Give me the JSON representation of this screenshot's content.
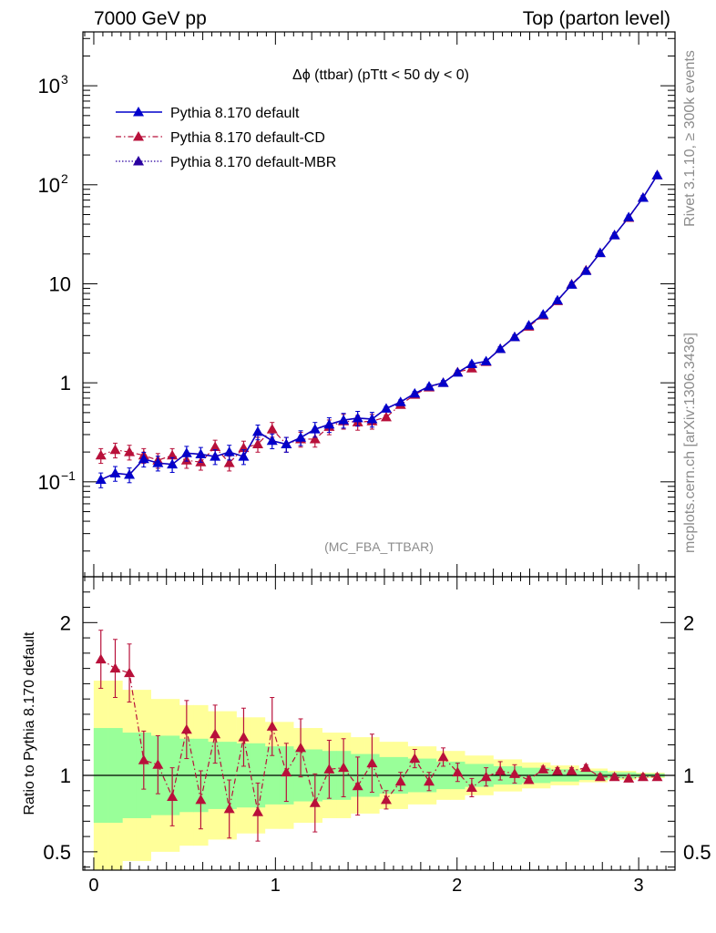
{
  "header": {
    "left": "7000 GeV pp",
    "right": "Top (parton level)"
  },
  "side": {
    "rivet": "Rivet 3.1.10, ≥ 300k events",
    "mcplots": "mcplots.cern.ch [arXiv:1306.3436]"
  },
  "plot_title": "Δϕ (ttbar) (pTtt < 50 dy < 0)",
  "analysis_tag": "(MC_FBA_TTBAR)",
  "ratio_ylabel": "Ratio to Pythia 8.170 default",
  "colors": {
    "default": "#0000cc",
    "cd": "#b8103a",
    "mbr": "#2a00a0",
    "band_inner": "#99ff99",
    "band_outer": "#ffff99"
  },
  "chart_data": [
    {
      "type": "line",
      "title": "Δϕ (ttbar) (pTtt < 50 dy < 0)",
      "xlabel": "",
      "ylabel": "",
      "yscale": "log",
      "xlim": [
        -0.06,
        3.2
      ],
      "ylim": [
        0.011,
        3500
      ],
      "y_ticks": [
        "10^-1",
        "1",
        "10",
        "10^2",
        "10^3"
      ],
      "legend": "top-left",
      "x": [
        0.039,
        0.118,
        0.196,
        0.275,
        0.353,
        0.432,
        0.511,
        0.589,
        0.668,
        0.746,
        0.825,
        0.903,
        0.982,
        1.06,
        1.139,
        1.218,
        1.296,
        1.375,
        1.453,
        1.532,
        1.61,
        1.689,
        1.767,
        1.846,
        1.924,
        2.003,
        2.081,
        2.16,
        2.238,
        2.317,
        2.395,
        2.474,
        2.553,
        2.631,
        2.71,
        2.788,
        2.867,
        2.945,
        3.024,
        3.102
      ],
      "series": [
        {
          "name": "Pythia 8.170 default",
          "style": "solid",
          "values": [
            0.105,
            0.122,
            0.118,
            0.17,
            0.155,
            0.15,
            0.195,
            0.19,
            0.18,
            0.2,
            0.18,
            0.32,
            0.26,
            0.24,
            0.28,
            0.34,
            0.38,
            0.42,
            0.44,
            0.43,
            0.55,
            0.64,
            0.78,
            0.92,
            1.0,
            1.27,
            1.55,
            1.65,
            2.2,
            2.9,
            3.8,
            4.9,
            6.8,
            9.8,
            13.5,
            20.5,
            31,
            47,
            74,
            125
          ]
        },
        {
          "name": "Pythia 8.170 default-CD",
          "style": "dashdot",
          "values": [
            0.185,
            0.21,
            0.2,
            0.185,
            0.165,
            0.185,
            0.165,
            0.158,
            0.225,
            0.155,
            0.22,
            0.24,
            0.34,
            0.24,
            0.27,
            0.27,
            0.36,
            0.41,
            0.4,
            0.41,
            0.45,
            0.6,
            0.76,
            0.9,
            1.0,
            1.28,
            1.4,
            1.63,
            2.2,
            2.9,
            3.7,
            4.8,
            6.7,
            9.9,
            13.7,
            20.5,
            31,
            46.5,
            74,
            125
          ]
        },
        {
          "name": "Pythia 8.170 default-MBR",
          "style": "dotted",
          "values": [
            0.105,
            0.122,
            0.118,
            0.17,
            0.155,
            0.15,
            0.195,
            0.19,
            0.18,
            0.2,
            0.18,
            0.32,
            0.26,
            0.24,
            0.28,
            0.34,
            0.38,
            0.42,
            0.44,
            0.43,
            0.55,
            0.64,
            0.78,
            0.92,
            1.0,
            1.27,
            1.55,
            1.65,
            2.2,
            2.9,
            3.8,
            4.9,
            6.8,
            9.8,
            13.5,
            20.5,
            31,
            47,
            74,
            125
          ]
        }
      ]
    },
    {
      "type": "line",
      "title": "",
      "xlabel": "",
      "ylabel": "Ratio to Pythia 8.170 default",
      "xlim": [
        -0.06,
        3.2
      ],
      "ylim": [
        0.38,
        2.3
      ],
      "x_ticks": [
        "0",
        "1",
        "2",
        "3"
      ],
      "y_ticks": [
        "0.5",
        "1",
        "2"
      ],
      "x": [
        0.039,
        0.118,
        0.196,
        0.275,
        0.353,
        0.432,
        0.511,
        0.589,
        0.668,
        0.746,
        0.825,
        0.903,
        0.982,
        1.06,
        1.139,
        1.218,
        1.296,
        1.375,
        1.453,
        1.532,
        1.61,
        1.689,
        1.767,
        1.846,
        1.924,
        2.003,
        2.081,
        2.16,
        2.238,
        2.317,
        2.395,
        2.474,
        2.553,
        2.631,
        2.71,
        2.788,
        2.867,
        2.945,
        3.024,
        3.102
      ],
      "series": [
        {
          "name": "Pythia 8.170 default-CD",
          "values": [
            1.76,
            1.7,
            1.67,
            1.1,
            1.07,
            0.86,
            1.3,
            0.84,
            1.27,
            0.78,
            1.25,
            0.76,
            1.32,
            1.02,
            1.18,
            0.82,
            1.04,
            1.05,
            0.93,
            1.08,
            0.84,
            0.96,
            1.11,
            0.96,
            1.12,
            1.02,
            0.92,
            0.99,
            1.03,
            1.01,
            0.97,
            1.04,
            1.03,
            1.03,
            1.05,
            0.99,
            0.99,
            0.98,
            0.99,
            0.99
          ]
        }
      ],
      "band_inner_halfwidth": [
        0.31,
        0.31,
        0.28,
        0.28,
        0.26,
        0.26,
        0.24,
        0.24,
        0.22,
        0.22,
        0.21,
        0.21,
        0.19,
        0.19,
        0.17,
        0.17,
        0.16,
        0.16,
        0.14,
        0.14,
        0.12,
        0.12,
        0.11,
        0.11,
        0.09,
        0.09,
        0.075,
        0.075,
        0.06,
        0.06,
        0.05,
        0.05,
        0.04,
        0.04,
        0.03,
        0.03,
        0.02,
        0.02,
        0.012,
        0.012
      ],
      "band_outer_halfwidth": [
        0.62,
        0.62,
        0.56,
        0.56,
        0.5,
        0.5,
        0.46,
        0.46,
        0.42,
        0.42,
        0.38,
        0.38,
        0.35,
        0.35,
        0.31,
        0.31,
        0.28,
        0.28,
        0.25,
        0.25,
        0.22,
        0.22,
        0.19,
        0.19,
        0.16,
        0.16,
        0.13,
        0.13,
        0.105,
        0.105,
        0.085,
        0.085,
        0.065,
        0.065,
        0.045,
        0.045,
        0.03,
        0.03,
        0.018,
        0.018
      ]
    }
  ]
}
